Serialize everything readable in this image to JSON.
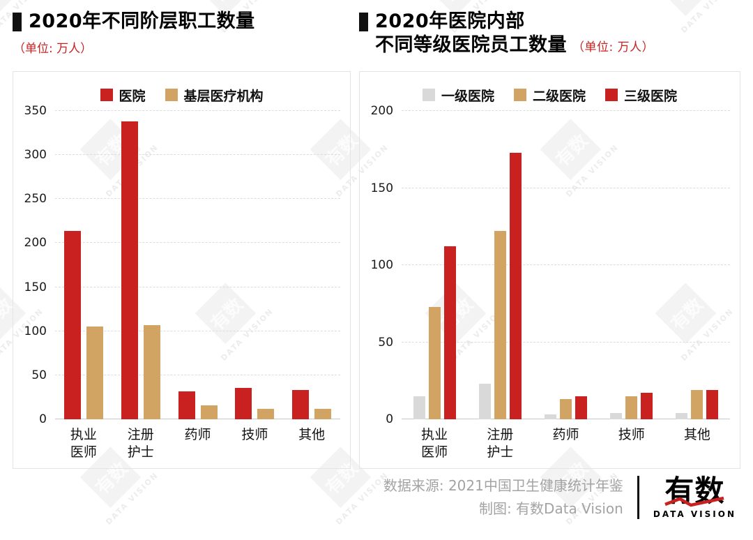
{
  "colors": {
    "hospital_red": "#c9211f",
    "grassroots_tan": "#d2a463",
    "grade1_gray": "#d9d9d9",
    "title_black": "#000000",
    "unit_red": "#c9211f",
    "footer_gray": "#a3a3a3"
  },
  "watermark": {
    "square_text": "有数",
    "label": "DATA VISION"
  },
  "chart_data": [
    {
      "type": "bar",
      "title": "2020年不同阶层职工数量",
      "unit": "（单位: 万人）",
      "categories": [
        "执业医师",
        "注册护士",
        "药师",
        "技师",
        "其他"
      ],
      "category_labels": [
        "执业\n医师",
        "注册\n护士",
        "药师",
        "技师",
        "其他"
      ],
      "series": [
        {
          "name": "医院",
          "color": "#c9211f",
          "values": [
            214,
            338,
            32,
            36,
            33
          ]
        },
        {
          "name": "基层医疗机构",
          "color": "#d2a463",
          "values": [
            105,
            107,
            16,
            12,
            12
          ]
        }
      ],
      "xlabel": "",
      "ylabel": "",
      "ylim": [
        0,
        350
      ],
      "yticks": [
        0,
        50,
        100,
        150,
        200,
        250,
        300,
        350
      ],
      "grid": true,
      "legend_position": "top"
    },
    {
      "type": "bar",
      "title": "2020年医院内部不同等级医院员工数量",
      "title_lines": [
        "2020年医院内部",
        "不同等级医院员工数量"
      ],
      "unit": "（单位: 万人）",
      "categories": [
        "执业医师",
        "注册护士",
        "药师",
        "技师",
        "其他"
      ],
      "category_labels": [
        "执业\n医师",
        "注册\n护士",
        "药师",
        "技师",
        "其他"
      ],
      "series": [
        {
          "name": "一级医院",
          "color": "#d9d9d9",
          "values": [
            15,
            23,
            3,
            4,
            4
          ]
        },
        {
          "name": "二级医院",
          "color": "#d2a463",
          "values": [
            73,
            122,
            13,
            15,
            19
          ]
        },
        {
          "name": "三级医院",
          "color": "#c9211f",
          "values": [
            112,
            173,
            15,
            17,
            19
          ]
        }
      ],
      "xlabel": "",
      "ylabel": "",
      "ylim": [
        0,
        200
      ],
      "yticks": [
        0,
        50,
        100,
        150,
        200
      ],
      "grid": true,
      "legend_position": "top"
    }
  ],
  "footer": {
    "source": "数据来源: 2021中国卫生健康统计年鉴",
    "credit": "制图: 有数Data Vision",
    "logo_text": "有数",
    "logo_subtitle": "DATA VISION"
  }
}
